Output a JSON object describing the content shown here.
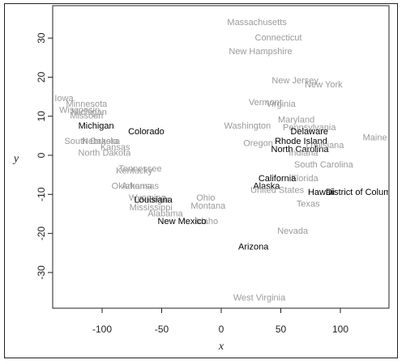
{
  "chart_data": {
    "type": "scatter",
    "title": "",
    "xlabel": "x",
    "ylabel": "y",
    "xlim": [
      -140,
      140
    ],
    "ylim": [
      -40,
      36
    ],
    "xticks": [
      -100,
      -50,
      0,
      50,
      100
    ],
    "yticks": [
      -30,
      -20,
      -10,
      0,
      10,
      20,
      30
    ],
    "grid": false,
    "colors": {
      "highlight": "#000000",
      "muted": "#9a9a9a"
    },
    "points": [
      {
        "label": "Massachusetts",
        "x": 30,
        "y": 34,
        "highlight": false
      },
      {
        "label": "Connecticut",
        "x": 48,
        "y": 30,
        "highlight": false
      },
      {
        "label": "New Hampshire",
        "x": 33,
        "y": 26.5,
        "highlight": false
      },
      {
        "label": "New Jersey",
        "x": 62,
        "y": 19,
        "highlight": false
      },
      {
        "label": "New York",
        "x": 86,
        "y": 18,
        "highlight": false
      },
      {
        "label": "Vermont",
        "x": 37,
        "y": 13.5,
        "highlight": false
      },
      {
        "label": "Virginia",
        "x": 50,
        "y": 13,
        "highlight": false
      },
      {
        "label": "Maryland",
        "x": 63,
        "y": 9,
        "highlight": false
      },
      {
        "label": "Washington",
        "x": 22,
        "y": 7.5,
        "highlight": false
      },
      {
        "label": "Pennsylvania",
        "x": 74,
        "y": 7,
        "highlight": false
      },
      {
        "label": "Maine",
        "x": 129,
        "y": 4.5,
        "highlight": false
      },
      {
        "label": "Oregon",
        "x": 31,
        "y": 3,
        "highlight": false
      },
      {
        "label": "Delaware",
        "x": 74,
        "y": 6,
        "highlight": true
      },
      {
        "label": "Rhode Island",
        "x": 67,
        "y": 3.5,
        "highlight": true
      },
      {
        "label": "North Carolina",
        "x": 66,
        "y": 1.5,
        "highlight": true
      },
      {
        "label": "Indiana",
        "x": 69,
        "y": 0.5,
        "highlight": false
      },
      {
        "label": "Louisiana",
        "x": 87,
        "y": 2.5,
        "highlight": false
      },
      {
        "label": "South Carolina",
        "x": 86,
        "y": -2.5,
        "highlight": false
      },
      {
        "label": "Florida",
        "x": 70,
        "y": -6,
        "highlight": false
      },
      {
        "label": "California",
        "x": 47,
        "y": -6,
        "highlight": true
      },
      {
        "label": "Alaska",
        "x": 38,
        "y": -8,
        "highlight": true
      },
      {
        "label": "United States",
        "x": 47,
        "y": -9,
        "highlight": false
      },
      {
        "label": "Hawaii",
        "x": 84,
        "y": -9.5,
        "highlight": true
      },
      {
        "label": "District of Columbia",
        "x": 120,
        "y": -9.5,
        "highlight": true
      },
      {
        "label": "Texas",
        "x": 73,
        "y": -12.5,
        "highlight": false
      },
      {
        "label": "Nevada",
        "x": 60,
        "y": -19.5,
        "highlight": false
      },
      {
        "label": "Arizona",
        "x": 27,
        "y": -23.5,
        "highlight": true
      },
      {
        "label": "West Virginia",
        "x": 32,
        "y": -36.5,
        "highlight": false
      },
      {
        "label": "Iowa",
        "x": -132,
        "y": 14.5,
        "highlight": false
      },
      {
        "label": "Minnesota",
        "x": -113,
        "y": 13,
        "highlight": false
      },
      {
        "label": "Wisconsin",
        "x": -119,
        "y": 11.5,
        "highlight": false
      },
      {
        "label": "Michigan",
        "x": -111,
        "y": 11,
        "highlight": false
      },
      {
        "label": "Missouri",
        "x": -113,
        "y": 10,
        "highlight": false
      },
      {
        "label": "Michigan",
        "x": -105,
        "y": 7.5,
        "highlight": true
      },
      {
        "label": "Colorado",
        "x": -63,
        "y": 6,
        "highlight": true
      },
      {
        "label": "South Dakota",
        "x": -109,
        "y": 3.5,
        "highlight": false
      },
      {
        "label": "Nebraska",
        "x": -101,
        "y": 3.5,
        "highlight": false
      },
      {
        "label": "Kansas",
        "x": -89,
        "y": 2,
        "highlight": false
      },
      {
        "label": "North Dakota",
        "x": -98,
        "y": 0.5,
        "highlight": false
      },
      {
        "label": "Tennessee",
        "x": -68,
        "y": -3.5,
        "highlight": false
      },
      {
        "label": "Kentucky",
        "x": -73,
        "y": -4,
        "highlight": false
      },
      {
        "label": "Oklahoma",
        "x": -75,
        "y": -8,
        "highlight": false
      },
      {
        "label": "Arkansas",
        "x": -68,
        "y": -8,
        "highlight": false
      },
      {
        "label": "Wyoming",
        "x": -62,
        "y": -11,
        "highlight": false
      },
      {
        "label": "Georgia",
        "x": -57,
        "y": -11.5,
        "highlight": false
      },
      {
        "label": "Ohio",
        "x": -13,
        "y": -11,
        "highlight": false
      },
      {
        "label": "Louisiana",
        "x": -57,
        "y": -11.5,
        "highlight": true
      },
      {
        "label": "Montana",
        "x": -11,
        "y": -13,
        "highlight": false
      },
      {
        "label": "Mississippi",
        "x": -59,
        "y": -13.5,
        "highlight": false
      },
      {
        "label": "Alabama",
        "x": -47,
        "y": -15,
        "highlight": false
      },
      {
        "label": "Idaho",
        "x": -12,
        "y": -17,
        "highlight": false
      },
      {
        "label": "New Mexico",
        "x": -33,
        "y": -17,
        "highlight": true
      }
    ]
  }
}
